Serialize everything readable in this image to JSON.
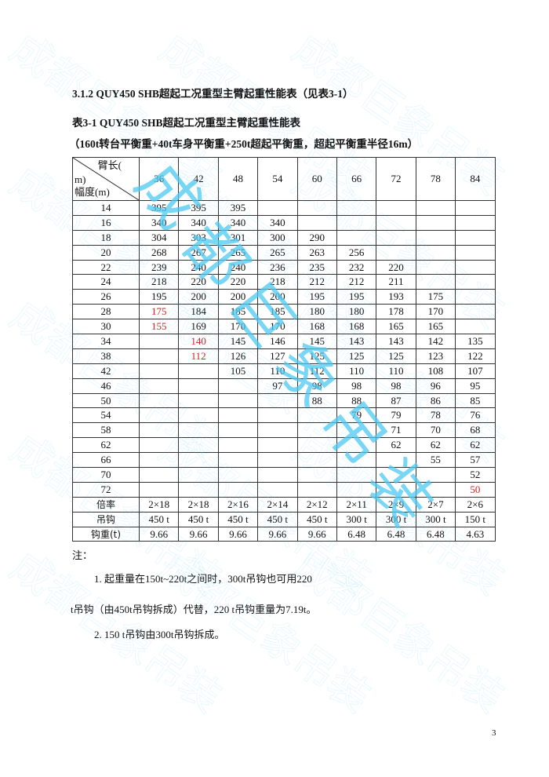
{
  "heading": "3.1.2 QUY450 SHB超起工况重型主臂起重性能表（见表3-1）",
  "table_title": "表3-1 QUY450 SHB超起工况重型主臂起重性能表",
  "table_subtitle": "（160t转台平衡重+40t车身平衡重+250t超起平衡重，超起平衡重半径16m）",
  "table": {
    "corner_top": "臂长(",
    "corner_mid": "m)",
    "corner_bottom": "幅度(m)",
    "boom_lengths": [
      "36",
      "42",
      "48",
      "54",
      "60",
      "66",
      "72",
      "78",
      "84"
    ],
    "rows": [
      {
        "radius": "14",
        "values": [
          "395",
          "395",
          "395",
          "",
          "",
          "",
          "",
          "",
          ""
        ]
      },
      {
        "radius": "16",
        "values": [
          "340",
          "340",
          "340",
          "340",
          "",
          "",
          "",
          "",
          ""
        ]
      },
      {
        "radius": "18",
        "values": [
          "304",
          "303",
          "301",
          "300",
          "290",
          "",
          "",
          "",
          ""
        ]
      },
      {
        "radius": "20",
        "values": [
          "268",
          "267",
          "265",
          "265",
          "263",
          "256",
          "",
          "",
          ""
        ]
      },
      {
        "radius": "22",
        "values": [
          "239",
          "240",
          "240",
          "236",
          "235",
          "232",
          "220",
          "",
          ""
        ]
      },
      {
        "radius": "24",
        "values": [
          "218",
          "220",
          "220",
          "218",
          "212",
          "212",
          "211",
          "",
          ""
        ]
      },
      {
        "radius": "26",
        "values": [
          "195",
          "200",
          "200",
          "200",
          "195",
          "195",
          "193",
          "175",
          ""
        ]
      },
      {
        "radius": "28",
        "values": [
          "175",
          "184",
          "185",
          "185",
          "180",
          "180",
          "178",
          "170",
          ""
        ],
        "red": [
          0
        ]
      },
      {
        "radius": "30",
        "values": [
          "155",
          "169",
          "170",
          "170",
          "168",
          "168",
          "165",
          "165",
          ""
        ],
        "red": [
          0
        ]
      },
      {
        "radius": "34",
        "values": [
          "",
          "140",
          "145",
          "146",
          "145",
          "143",
          "143",
          "142",
          "135"
        ],
        "red": [
          1
        ]
      },
      {
        "radius": "38",
        "values": [
          "",
          "112",
          "126",
          "127",
          "125",
          "125",
          "125",
          "123",
          "122"
        ],
        "red": [
          1
        ]
      },
      {
        "radius": "42",
        "values": [
          "",
          "",
          "105",
          "110",
          "112",
          "110",
          "110",
          "108",
          "107"
        ]
      },
      {
        "radius": "46",
        "values": [
          "",
          "",
          "",
          "97",
          "98",
          "98",
          "98",
          "96",
          "95"
        ]
      },
      {
        "radius": "50",
        "values": [
          "",
          "",
          "",
          "",
          "88",
          "88",
          "87",
          "86",
          "85"
        ]
      },
      {
        "radius": "54",
        "values": [
          "",
          "",
          "",
          "",
          "",
          "79",
          "79",
          "78",
          "76"
        ]
      },
      {
        "radius": "58",
        "values": [
          "",
          "",
          "",
          "",
          "",
          "",
          "71",
          "70",
          "68"
        ]
      },
      {
        "radius": "62",
        "values": [
          "",
          "",
          "",
          "",
          "",
          "",
          "62",
          "62",
          "62"
        ]
      },
      {
        "radius": "66",
        "values": [
          "",
          "",
          "",
          "",
          "",
          "",
          "",
          "55",
          "57"
        ]
      },
      {
        "radius": "70",
        "values": [
          "",
          "",
          "",
          "",
          "",
          "",
          "",
          "",
          "52"
        ]
      },
      {
        "radius": "72",
        "values": [
          "",
          "",
          "",
          "",
          "",
          "",
          "",
          "",
          "50"
        ],
        "red": [
          8
        ]
      }
    ],
    "footer_rows": [
      {
        "label": "倍率",
        "values": [
          "2×18",
          "2×18",
          "2×16",
          "2×14",
          "2×12",
          "2×11",
          "2×9",
          "2×7",
          "2×6"
        ]
      },
      {
        "label": "吊钩",
        "values": [
          "450 t",
          "450 t",
          "450 t",
          "450 t",
          "450 t",
          "300 t",
          "300 t",
          "300 t",
          "150 t"
        ]
      },
      {
        "label": "钩重(t)",
        "values": [
          "9.66",
          "9.66",
          "9.66",
          "9.66",
          "9.66",
          "6.48",
          "6.48",
          "6.48",
          "4.63"
        ]
      }
    ],
    "highlight_color": "#d42020"
  },
  "notes": {
    "label": "注：",
    "note1_line1": "1. 起重量在150t~220t之间时，300t吊钩也可用220",
    "note1_line2": "t吊钩（由450t吊钩拆成）代替，220 t吊钩重量为7.19t。",
    "note2": "2. 150 t吊钩由300t吊钩拆成。"
  },
  "page_number": "3",
  "watermark": {
    "text": "成都巨象吊装",
    "color": "#4cc8f0"
  }
}
